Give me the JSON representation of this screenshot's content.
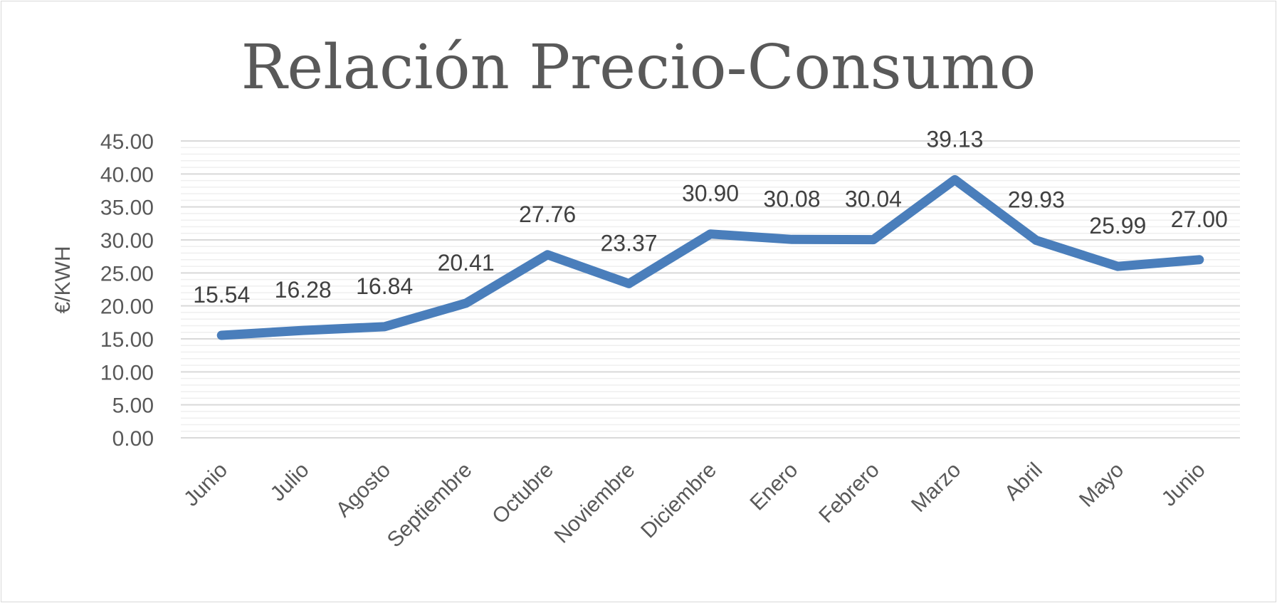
{
  "chart_data": {
    "type": "line",
    "title": "Relación Precio-Consumo",
    "xlabel": "",
    "ylabel": "€/KWH",
    "categories": [
      "Junio",
      "Julio",
      "Agosto",
      "Septiembre",
      "Octubre",
      "Noviembre",
      "Diciembre",
      "Enero",
      "Febrero",
      "Marzo",
      "Abril",
      "Mayo",
      "Junio"
    ],
    "series": [
      {
        "values": [
          15.54,
          16.28,
          16.84,
          20.41,
          27.76,
          23.37,
          30.9,
          30.08,
          30.04,
          39.13,
          29.93,
          25.99,
          27.0
        ]
      }
    ],
    "data_labels": [
      "15.54",
      "16.28",
      "16.84",
      "20.41",
      "27.76",
      "23.37",
      "30.90",
      "30.08",
      "30.04",
      "39.13",
      "29.93",
      "25.99",
      "27.00"
    ],
    "y_ticks": [
      "0.00",
      "5.00",
      "10.00",
      "15.00",
      "20.00",
      "25.00",
      "30.00",
      "35.00",
      "40.00",
      "45.00"
    ],
    "ylim": [
      0,
      45
    ],
    "y_major_step": 5,
    "y_minor_step": 1,
    "grid": true,
    "legend": "none",
    "line_color": "#4a7ebb",
    "major_grid_color": "#d9d9d9",
    "minor_grid_color": "#efefef"
  }
}
